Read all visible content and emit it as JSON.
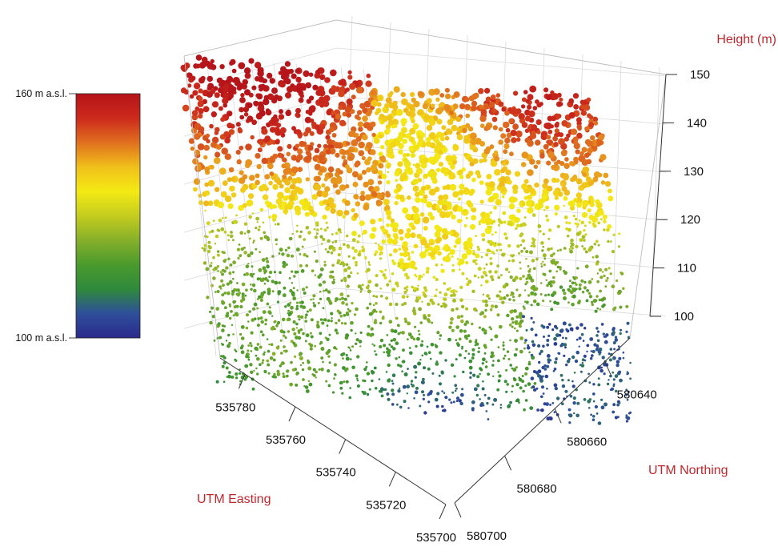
{
  "chart_data": {
    "type": "scatter",
    "subtype": "3d-point-cloud",
    "title": "",
    "colorbar": {
      "max_label": "160 m a.s.l.",
      "min_label": "100 m a.s.l.",
      "range": [
        100,
        160
      ],
      "colors": [
        "#2b2a8c",
        "#2e4f9a",
        "#2f8a3c",
        "#4a9a2c",
        "#86b02a",
        "#c4cc1e",
        "#f4ea14",
        "#f0c01a",
        "#e0701f",
        "#cc2a1c",
        "#b5141a"
      ]
    },
    "z_axis": {
      "label": "Height (m)",
      "ticks": [
        150,
        140,
        130,
        120,
        110,
        100
      ],
      "range": [
        100,
        150
      ]
    },
    "x_axis": {
      "label": "UTM Easting",
      "ticks": [
        535780,
        535760,
        535740,
        535720,
        535700
      ],
      "range": [
        535700,
        535790
      ]
    },
    "y_axis": {
      "label": "UTM Northing",
      "ticks": [
        580640,
        580660,
        580680,
        580700
      ],
      "range": [
        580630,
        580700
      ]
    },
    "axis_title_color": "#c0272d",
    "grid": true
  }
}
